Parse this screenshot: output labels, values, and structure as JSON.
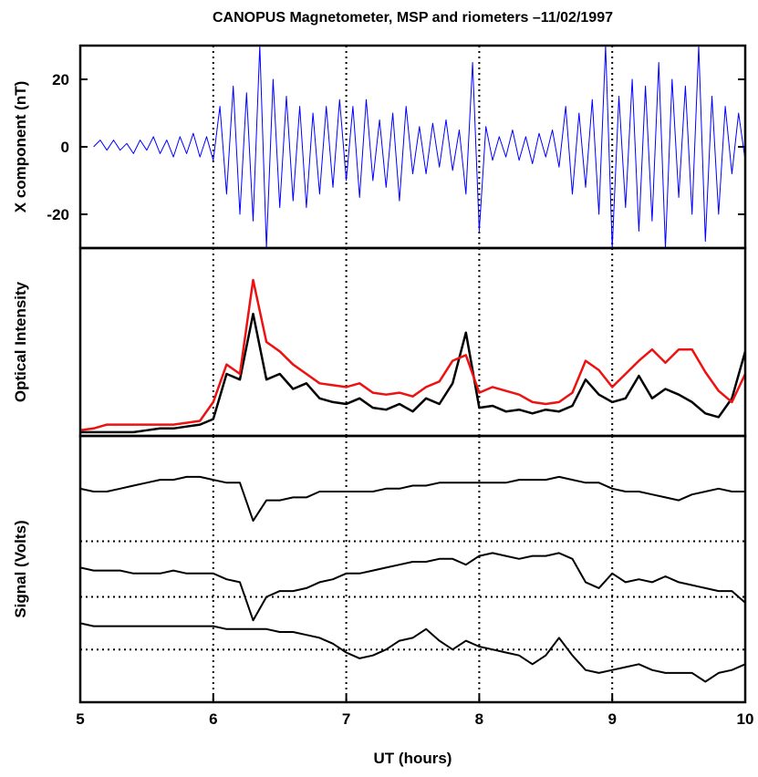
{
  "chart_data": [
    {
      "type": "line",
      "title": "CANOPUS Magnetometer, MSP and riometers –11/02/1997",
      "ylabel": "X component (nT)",
      "xlim": [
        5,
        10
      ],
      "ylim": [
        -30,
        30
      ],
      "yticks": [
        -20,
        0,
        20
      ],
      "vlines": [
        6,
        7,
        8,
        9
      ],
      "x": [
        5.1,
        5.15,
        5.2,
        5.25,
        5.3,
        5.35,
        5.4,
        5.45,
        5.5,
        5.55,
        5.6,
        5.65,
        5.7,
        5.75,
        5.8,
        5.85,
        5.9,
        5.95,
        6.0,
        6.05,
        6.1,
        6.15,
        6.2,
        6.25,
        6.3,
        6.35,
        6.4,
        6.45,
        6.5,
        6.55,
        6.6,
        6.65,
        6.7,
        6.75,
        6.8,
        6.85,
        6.9,
        6.95,
        7.0,
        7.05,
        7.1,
        7.15,
        7.2,
        7.25,
        7.3,
        7.35,
        7.4,
        7.45,
        7.5,
        7.55,
        7.6,
        7.65,
        7.7,
        7.75,
        7.8,
        7.85,
        7.9,
        7.95,
        8.0,
        8.05,
        8.1,
        8.15,
        8.2,
        8.25,
        8.3,
        8.35,
        8.4,
        8.45,
        8.5,
        8.55,
        8.6,
        8.65,
        8.7,
        8.75,
        8.8,
        8.85,
        8.9,
        8.95,
        9.0,
        9.05,
        9.1,
        9.15,
        9.2,
        9.25,
        9.3,
        9.35,
        9.4,
        9.45,
        9.5,
        9.55,
        9.6,
        9.65,
        9.7,
        9.75,
        9.8,
        9.85,
        9.9,
        9.95,
        10.0
      ],
      "series": [
        {
          "color": "#0000ff",
          "values": [
            0,
            2,
            -1,
            2,
            -1,
            1,
            -2,
            2,
            -1,
            3,
            -2,
            2,
            -3,
            3,
            -2,
            4,
            -3,
            3,
            -4,
            12,
            -14,
            18,
            -20,
            16,
            -22,
            30,
            -30,
            20,
            -18,
            15,
            -16,
            12,
            -18,
            10,
            -14,
            12,
            -12,
            14,
            -10,
            12,
            -15,
            14,
            -10,
            8,
            -12,
            10,
            -16,
            12,
            -8,
            6,
            -8,
            7,
            -6,
            8,
            -7,
            5,
            -14,
            25,
            -25,
            6,
            -4,
            3,
            -3,
            5,
            -4,
            3,
            -5,
            4,
            -3,
            5,
            -6,
            12,
            -14,
            10,
            -12,
            14,
            -20,
            30,
            -30,
            15,
            -18,
            20,
            -25,
            18,
            -22,
            25,
            -30,
            20,
            -15,
            18,
            -20,
            30,
            -28,
            15,
            -20,
            12,
            -8,
            10,
            -4
          ]
        }
      ]
    },
    {
      "type": "line",
      "ylabel": "Optical Intensity",
      "xlim": [
        5,
        10
      ],
      "ylim": [
        0,
        1
      ],
      "vlines": [
        6,
        7,
        8,
        9
      ],
      "x": [
        5.0,
        5.1,
        5.2,
        5.3,
        5.4,
        5.5,
        5.6,
        5.7,
        5.8,
        5.9,
        6.0,
        6.1,
        6.2,
        6.3,
        6.4,
        6.5,
        6.6,
        6.7,
        6.8,
        6.9,
        7.0,
        7.1,
        7.2,
        7.3,
        7.4,
        7.5,
        7.6,
        7.7,
        7.8,
        7.9,
        8.0,
        8.1,
        8.2,
        8.3,
        8.4,
        8.5,
        8.6,
        8.7,
        8.8,
        8.9,
        9.0,
        9.1,
        9.2,
        9.3,
        9.4,
        9.5,
        9.6,
        9.7,
        9.8,
        9.9,
        10.0
      ],
      "series": [
        {
          "color": "#000000",
          "values": [
            0.02,
            0.02,
            0.02,
            0.02,
            0.02,
            0.03,
            0.04,
            0.04,
            0.05,
            0.06,
            0.09,
            0.33,
            0.3,
            0.65,
            0.3,
            0.33,
            0.25,
            0.28,
            0.2,
            0.18,
            0.17,
            0.2,
            0.15,
            0.14,
            0.17,
            0.13,
            0.2,
            0.17,
            0.28,
            0.55,
            0.15,
            0.16,
            0.13,
            0.14,
            0.12,
            0.14,
            0.13,
            0.16,
            0.3,
            0.22,
            0.18,
            0.2,
            0.32,
            0.2,
            0.25,
            0.22,
            0.18,
            0.12,
            0.1,
            0.2,
            0.45
          ]
        },
        {
          "color": "#ee1111",
          "values": [
            0.03,
            0.04,
            0.06,
            0.06,
            0.06,
            0.06,
            0.06,
            0.06,
            0.07,
            0.08,
            0.18,
            0.38,
            0.33,
            0.83,
            0.5,
            0.45,
            0.38,
            0.33,
            0.28,
            0.27,
            0.26,
            0.28,
            0.23,
            0.22,
            0.23,
            0.21,
            0.26,
            0.29,
            0.4,
            0.43,
            0.23,
            0.26,
            0.24,
            0.22,
            0.18,
            0.17,
            0.18,
            0.23,
            0.4,
            0.35,
            0.26,
            0.33,
            0.4,
            0.46,
            0.39,
            0.46,
            0.46,
            0.34,
            0.24,
            0.18,
            0.33
          ]
        }
      ]
    },
    {
      "type": "line",
      "ylabel": "Signal (Volts)",
      "xlabel": "UT (hours)",
      "xlim": [
        5,
        10
      ],
      "ylim": [
        0.09,
        1
      ],
      "xticks": [
        5,
        6,
        7,
        8,
        9,
        10
      ],
      "vlines": [
        6,
        7,
        8,
        9
      ],
      "hlines": [
        0.64,
        0.45,
        0.27
      ],
      "x": [
        5.0,
        5.1,
        5.2,
        5.3,
        5.4,
        5.5,
        5.6,
        5.7,
        5.8,
        5.9,
        6.0,
        6.1,
        6.2,
        6.3,
        6.4,
        6.5,
        6.6,
        6.7,
        6.8,
        6.9,
        7.0,
        7.1,
        7.2,
        7.3,
        7.4,
        7.5,
        7.6,
        7.7,
        7.8,
        7.9,
        8.0,
        8.1,
        8.2,
        8.3,
        8.4,
        8.5,
        8.6,
        8.7,
        8.8,
        8.9,
        9.0,
        9.1,
        9.2,
        9.3,
        9.4,
        9.5,
        9.6,
        9.7,
        9.8,
        9.9,
        10.0
      ],
      "series": [
        {
          "color": "#000000",
          "values": [
            0.82,
            0.81,
            0.81,
            0.82,
            0.83,
            0.84,
            0.85,
            0.85,
            0.86,
            0.86,
            0.85,
            0.84,
            0.84,
            0.71,
            0.78,
            0.78,
            0.79,
            0.79,
            0.81,
            0.81,
            0.81,
            0.81,
            0.81,
            0.82,
            0.82,
            0.83,
            0.83,
            0.84,
            0.84,
            0.84,
            0.84,
            0.84,
            0.84,
            0.85,
            0.85,
            0.85,
            0.86,
            0.85,
            0.84,
            0.84,
            0.82,
            0.81,
            0.81,
            0.8,
            0.79,
            0.78,
            0.8,
            0.81,
            0.82,
            0.81,
            0.81
          ]
        },
        {
          "color": "#000000",
          "values": [
            0.55,
            0.54,
            0.54,
            0.54,
            0.53,
            0.53,
            0.53,
            0.54,
            0.53,
            0.53,
            0.53,
            0.51,
            0.5,
            0.37,
            0.45,
            0.47,
            0.47,
            0.48,
            0.5,
            0.51,
            0.53,
            0.53,
            0.54,
            0.55,
            0.56,
            0.57,
            0.57,
            0.58,
            0.58,
            0.56,
            0.59,
            0.6,
            0.59,
            0.58,
            0.59,
            0.59,
            0.6,
            0.58,
            0.5,
            0.48,
            0.53,
            0.5,
            0.51,
            0.5,
            0.52,
            0.5,
            0.49,
            0.48,
            0.47,
            0.47,
            0.43
          ]
        },
        {
          "color": "#000000",
          "values": [
            0.36,
            0.35,
            0.35,
            0.35,
            0.35,
            0.35,
            0.35,
            0.35,
            0.35,
            0.35,
            0.35,
            0.34,
            0.34,
            0.34,
            0.34,
            0.33,
            0.33,
            0.32,
            0.31,
            0.29,
            0.26,
            0.24,
            0.25,
            0.27,
            0.3,
            0.31,
            0.34,
            0.3,
            0.27,
            0.3,
            0.28,
            0.27,
            0.26,
            0.25,
            0.22,
            0.25,
            0.31,
            0.25,
            0.2,
            0.19,
            0.2,
            0.21,
            0.22,
            0.2,
            0.19,
            0.19,
            0.19,
            0.16,
            0.19,
            0.2,
            0.22
          ]
        }
      ]
    }
  ]
}
